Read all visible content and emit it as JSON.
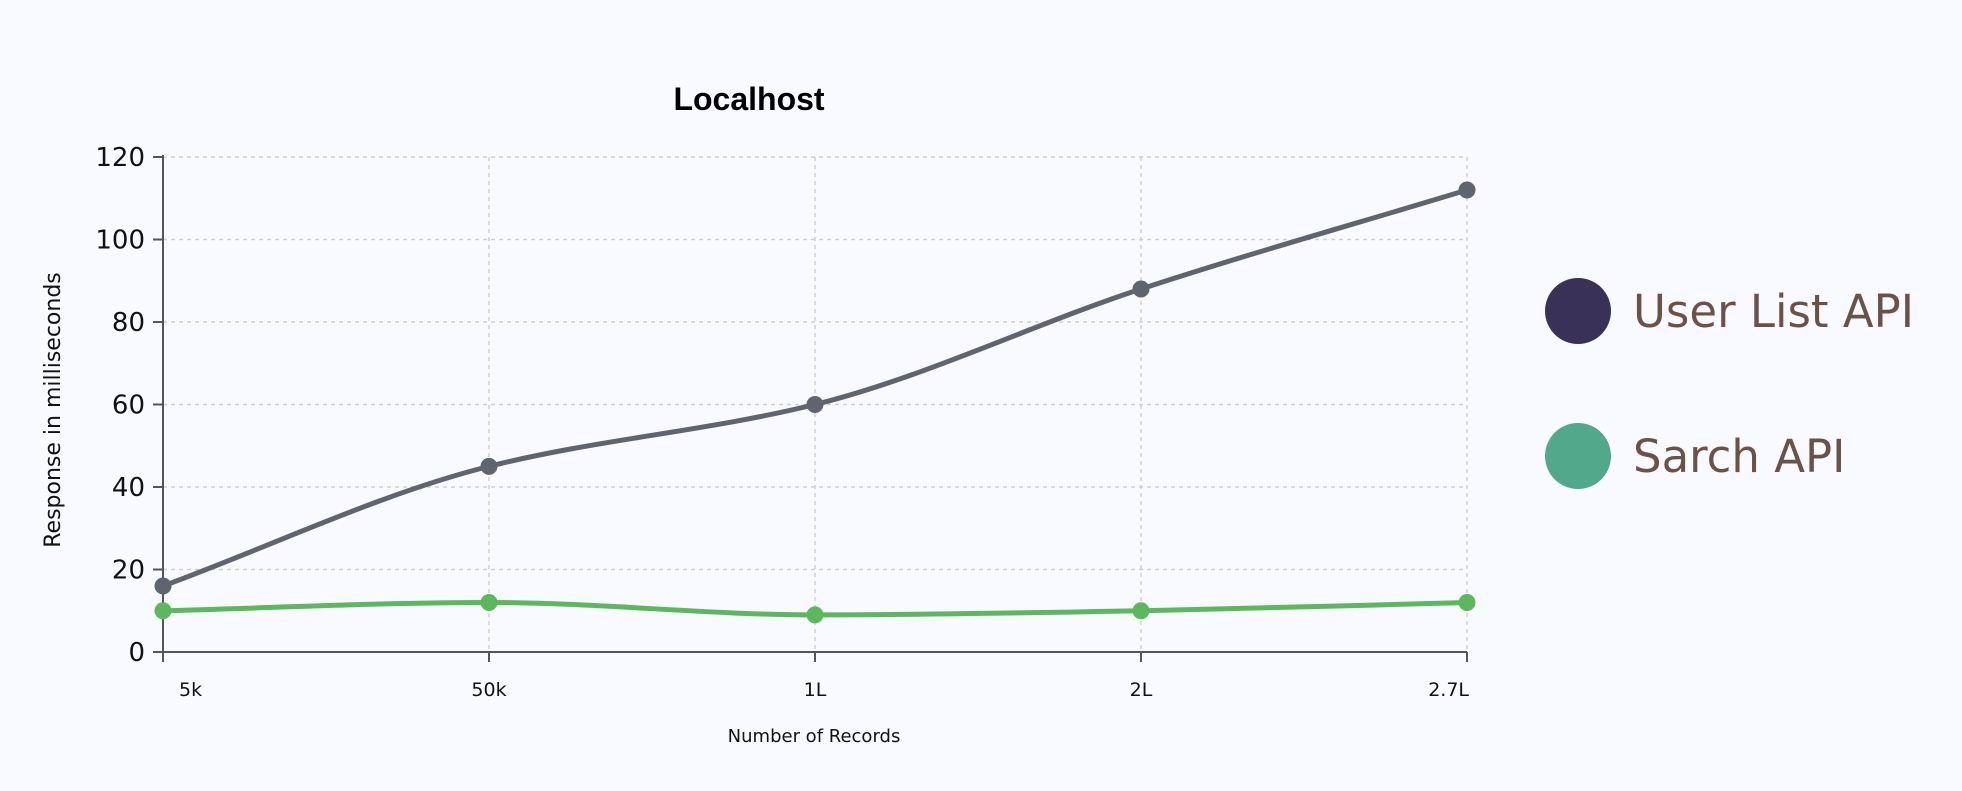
{
  "chart_data": {
    "type": "line",
    "title": "Localhost",
    "xlabel": "Number of Records",
    "ylabel": "Response in milliseconds",
    "categories": [
      "5k",
      "50k",
      "1L",
      "2L",
      "2.7L"
    ],
    "ylim": [
      0,
      120
    ],
    "yticks": [
      0,
      20,
      40,
      60,
      80,
      100,
      120
    ],
    "grid": true,
    "legend_position": "right",
    "series": [
      {
        "name": "User List API",
        "values": [
          16,
          45,
          60,
          88,
          112
        ],
        "line_color": "#5f6470",
        "legend_color": "#3a3158"
      },
      {
        "name": "Sarch API",
        "values": [
          10,
          12,
          9,
          10,
          12
        ],
        "line_color": "#5cb85c",
        "legend_color": "#52a88b"
      }
    ]
  }
}
